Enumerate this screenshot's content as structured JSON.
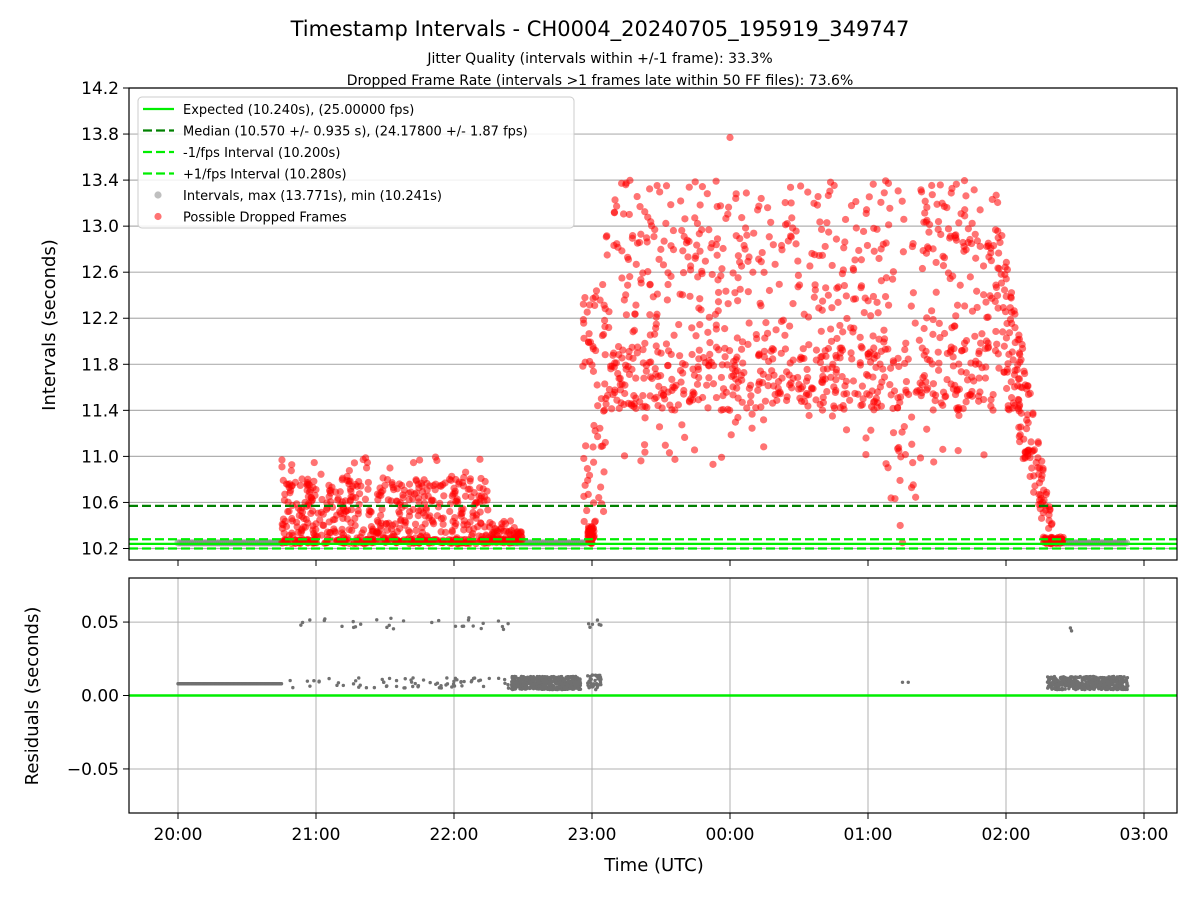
{
  "chart_data": [
    {
      "type": "scatter",
      "title": "Timestamp Intervals - CH0004_20240705_195919_349747",
      "subtitle_lines": [
        "Jitter Quality (intervals within +/-1 frame): 33.3%",
        "Dropped Frame Rate (intervals >1 frames late within 50 FF files): 73.6%"
      ],
      "xlabel": "",
      "ylabel": "Intervals (seconds)",
      "ylim": [
        10.1,
        14.2
      ],
      "yticks": [
        "10.2",
        "10.6",
        "11.0",
        "11.4",
        "11.8",
        "12.2",
        "12.6",
        "13.0",
        "13.4",
        "13.8",
        "14.2"
      ],
      "x_range_utc": [
        "19:37",
        "03:20"
      ],
      "grid": "horizontal",
      "legend_position": "top-left",
      "reference_lines": [
        {
          "name": "Expected (10.240s), (25.00000 fps)",
          "value": 10.24,
          "style": "solid",
          "color": "#00ee00"
        },
        {
          "name": "Median (10.570 +/- 0.935 s), (24.17800 +/- 1.87 fps)",
          "value": 10.57,
          "style": "dashed",
          "color": "#008000"
        },
        {
          "name": "-1/fps Interval (10.200s)",
          "value": 10.2,
          "style": "dashed",
          "color": "#00ee00"
        },
        {
          "name": "+1/fps Interval (10.280s)",
          "value": 10.28,
          "style": "dashed",
          "color": "#00ee00"
        }
      ],
      "series": [
        {
          "name": "Intervals, max (13.771s), min (10.241s)",
          "color": "#808080",
          "marker": "circle",
          "segments": [
            {
              "from": "20:00",
              "to": "20:45",
              "value": 10.249
            },
            {
              "from": "22:25",
              "to": "22:58",
              "value": 10.249
            },
            {
              "from": "02:20",
              "to": "02:53",
              "value": 10.249
            }
          ]
        },
        {
          "name": "Possible Dropped Frames",
          "color": "#ff0000",
          "marker": "circle",
          "clusters": [
            {
              "from": "20:45",
              "to": "22:30",
              "range": [
                10.24,
                11.0
              ]
            },
            {
              "from": "22:58",
              "to": "23:01",
              "range": [
                10.24,
                10.42
              ]
            },
            {
              "from": "22:55",
              "to": "23:05",
              "range": [
                10.4,
                12.6
              ]
            },
            {
              "from": "23:05",
              "to": "01:55",
              "range": [
                10.8,
                13.77
              ]
            },
            {
              "from": "01:55",
              "to": "02:20",
              "range": [
                10.3,
                13.6
              ]
            },
            {
              "from": "02:15",
              "to": "02:22",
              "range": [
                10.24,
                10.5
              ]
            }
          ]
        }
      ]
    },
    {
      "type": "scatter",
      "title": "",
      "xlabel": "Time (UTC)",
      "ylabel": "Residuals (seconds)",
      "ylim": [
        -0.08,
        0.08
      ],
      "yticks": [
        "−0.05",
        "0.00",
        "0.05"
      ],
      "xticks": [
        "20:00",
        "21:00",
        "22:00",
        "23:00",
        "00:00",
        "01:00",
        "02:00",
        "03:00"
      ],
      "grid": "both",
      "reference_lines": [
        {
          "value": 0.0,
          "style": "solid",
          "color": "#00ee00"
        }
      ],
      "series": [
        {
          "name": "",
          "color": "#707070",
          "marker": "dot",
          "points_description_ranges": [
            {
              "from": "20:00",
              "to": "20:45",
              "value": 0.008
            },
            {
              "from": "20:45",
              "to": "22:30",
              "range": [
                0.005,
                0.053
              ]
            },
            {
              "from": "22:25",
              "to": "23:03",
              "range": [
                0.003,
                0.014
              ]
            },
            {
              "from": "22:58",
              "to": "23:04",
              "range": [
                0.045,
                0.052
              ]
            },
            {
              "from": "01:15",
              "to": "01:18",
              "value": 0.009
            },
            {
              "from": "02:18",
              "to": "02:53",
              "range": [
                0.004,
                0.013
              ]
            },
            {
              "from": "02:28",
              "to": "02:29",
              "value": 0.046
            }
          ]
        }
      ]
    }
  ]
}
